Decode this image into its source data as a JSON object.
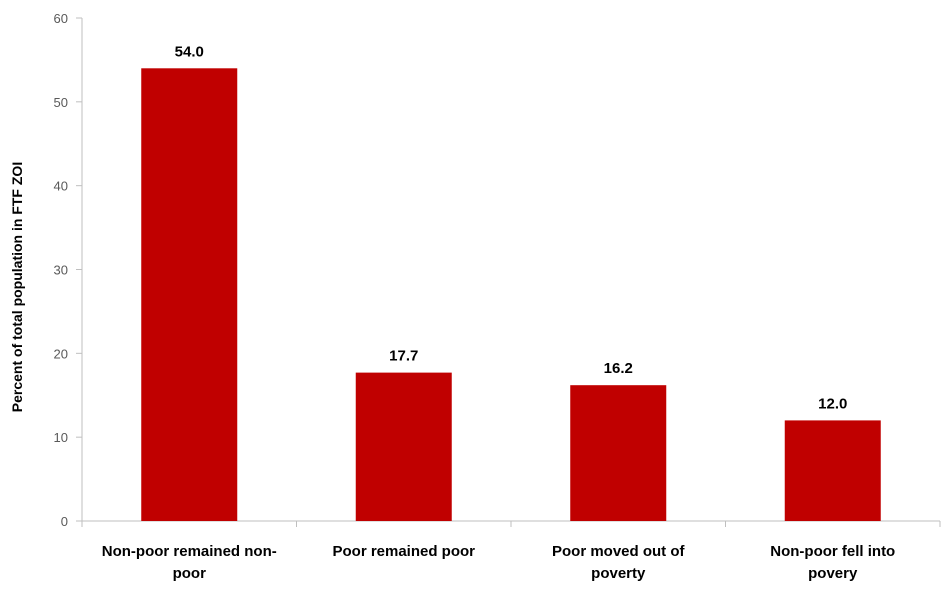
{
  "chart_data": {
    "type": "bar",
    "title": "",
    "xlabel": "",
    "ylabel": "Percent of total population in FTF ZOI",
    "ylim": [
      0,
      60
    ],
    "yticks": [
      0,
      10,
      20,
      30,
      40,
      50,
      60
    ],
    "grid": false,
    "categories": [
      [
        "Non-poor remained non-",
        "poor"
      ],
      [
        "Poor remained poor"
      ],
      [
        "Poor moved out of",
        "poverty"
      ],
      [
        "Non-poor fell into",
        "povery"
      ]
    ],
    "values": [
      54.0,
      17.7,
      16.2,
      12.0
    ],
    "value_labels": [
      "54.0",
      "17.7",
      "16.2",
      "12.0"
    ],
    "colors": {
      "bar": "#c00000",
      "axis": "#bfbfbf",
      "tick_text": "#595959",
      "text": "#000000"
    }
  }
}
